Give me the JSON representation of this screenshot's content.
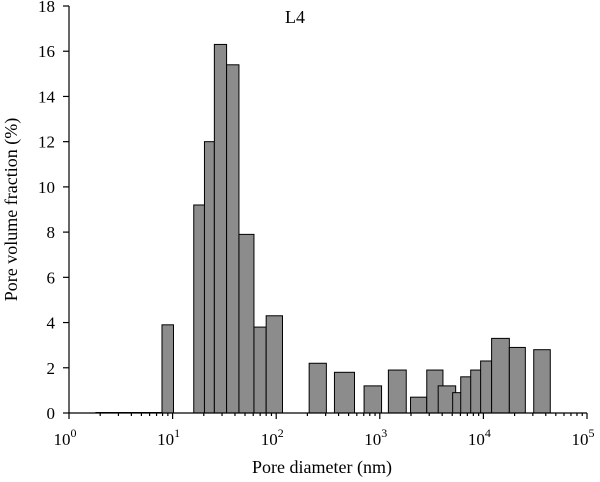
{
  "chart_data": {
    "type": "bar",
    "panel_label": "L4",
    "xlabel": "Pore diameter (nm)",
    "ylabel": "Pore volume fraction (%)",
    "x_scale": "log",
    "xlim": [
      1,
      100000
    ],
    "ylim": [
      0,
      18
    ],
    "x_ticks": [
      {
        "value": 1,
        "base": "10",
        "exp": "0"
      },
      {
        "value": 10,
        "base": "10",
        "exp": "1"
      },
      {
        "value": 100,
        "base": "10",
        "exp": "2"
      },
      {
        "value": 1000,
        "base": "10",
        "exp": "3"
      },
      {
        "value": 10000,
        "base": "10",
        "exp": "4"
      },
      {
        "value": 100000,
        "base": "10",
        "exp": "5"
      }
    ],
    "y_ticks": [
      "0",
      "2",
      "4",
      "6",
      "8",
      "10",
      "12",
      "14",
      "16",
      "18"
    ],
    "grid": false,
    "baseline_range": [
      1.8,
      8
    ],
    "bars": [
      {
        "x0": 7.9,
        "x1": 10.2,
        "value": 3.9
      },
      {
        "x0": 16,
        "x1": 20.3,
        "value": 9.2
      },
      {
        "x0": 20.3,
        "x1": 25.3,
        "value": 12.0
      },
      {
        "x0": 25.3,
        "x1": 33.2,
        "value": 16.3
      },
      {
        "x0": 33.2,
        "x1": 43.7,
        "value": 15.4
      },
      {
        "x0": 43.7,
        "x1": 61,
        "value": 7.9
      },
      {
        "x0": 61,
        "x1": 80,
        "value": 3.8
      },
      {
        "x0": 80,
        "x1": 115,
        "value": 4.3
      },
      {
        "x0": 208,
        "x1": 305,
        "value": 2.2
      },
      {
        "x0": 365,
        "x1": 570,
        "value": 1.8
      },
      {
        "x0": 705,
        "x1": 1040,
        "value": 1.2
      },
      {
        "x0": 1210,
        "x1": 1800,
        "value": 1.9
      },
      {
        "x0": 1980,
        "x1": 2840,
        "value": 0.7
      },
      {
        "x0": 2840,
        "x1": 4070,
        "value": 1.9
      },
      {
        "x0": 3660,
        "x1": 5400,
        "value": 1.2
      },
      {
        "x0": 5050,
        "x1": 6740,
        "value": 0.9
      },
      {
        "x0": 6040,
        "x1": 8140,
        "value": 1.6
      },
      {
        "x0": 7540,
        "x1": 9850,
        "value": 1.9
      },
      {
        "x0": 9400,
        "x1": 12000,
        "value": 2.3
      },
      {
        "x0": 12000,
        "x1": 17800,
        "value": 3.3
      },
      {
        "x0": 17800,
        "x1": 25400,
        "value": 2.9
      },
      {
        "x0": 30600,
        "x1": 44200,
        "value": 2.8
      }
    ]
  }
}
